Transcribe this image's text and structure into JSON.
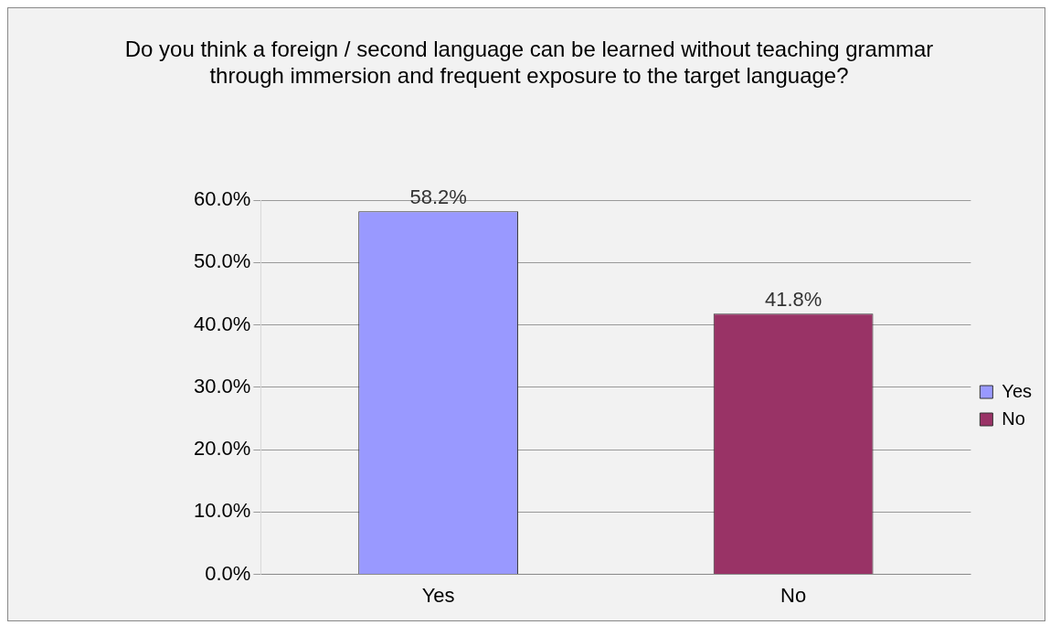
{
  "chart_data": {
    "type": "bar",
    "title": "Do you think a foreign / second language can be learned without teaching grammar through immersion and frequent exposure to the target language?",
    "categories": [
      "Yes",
      "No"
    ],
    "series": [
      {
        "name": "Yes",
        "color": "#9999ff",
        "values": [
          58.2,
          null
        ],
        "value_labels": [
          "58.2%",
          null
        ]
      },
      {
        "name": "No",
        "color": "#993366",
        "values": [
          null,
          41.8
        ],
        "value_labels": [
          null,
          "41.8%"
        ]
      }
    ],
    "ylim": [
      0,
      60
    ],
    "yticks": [
      {
        "value": 0,
        "label": "0.0%"
      },
      {
        "value": 10,
        "label": "10.0%"
      },
      {
        "value": 20,
        "label": "20.0%"
      },
      {
        "value": 30,
        "label": "30.0%"
      },
      {
        "value": 40,
        "label": "40.0%"
      },
      {
        "value": 50,
        "label": "50.0%"
      },
      {
        "value": 60,
        "label": "60.0%"
      }
    ],
    "grid": "y",
    "legend": "right"
  }
}
